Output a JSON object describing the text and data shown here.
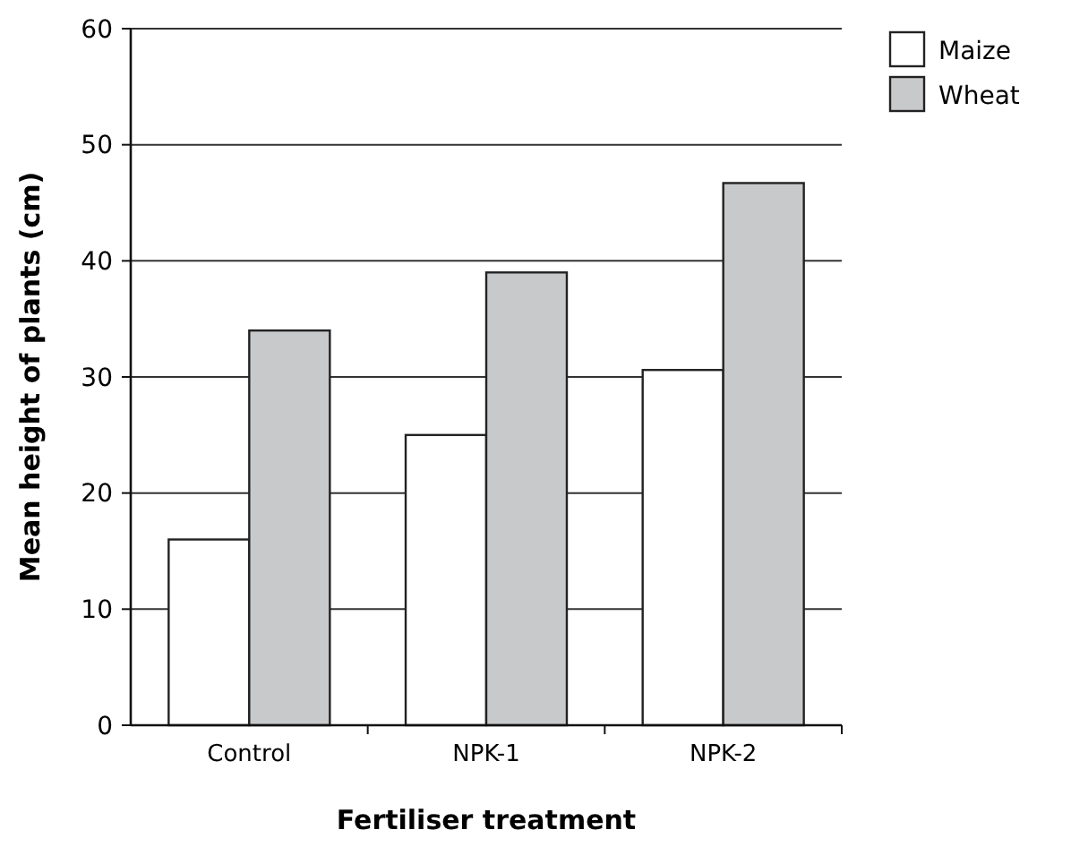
{
  "chart_data": {
    "type": "bar",
    "xlabel": "Fertiliser treatment",
    "ylabel": "Mean height of plants (cm)",
    "categories": [
      "Control",
      "NPK-1",
      "NPK-2"
    ],
    "series": [
      {
        "name": "Maize",
        "color": "#ffffff",
        "values": [
          16,
          25,
          30.6
        ]
      },
      {
        "name": "Wheat",
        "color": "#c8c9cb",
        "values": [
          34,
          39,
          46.7
        ]
      }
    ],
    "ylim": [
      0,
      60
    ],
    "yticks": [
      0,
      10,
      20,
      30,
      40,
      50,
      60
    ],
    "grid": "y",
    "legend": "top right"
  }
}
